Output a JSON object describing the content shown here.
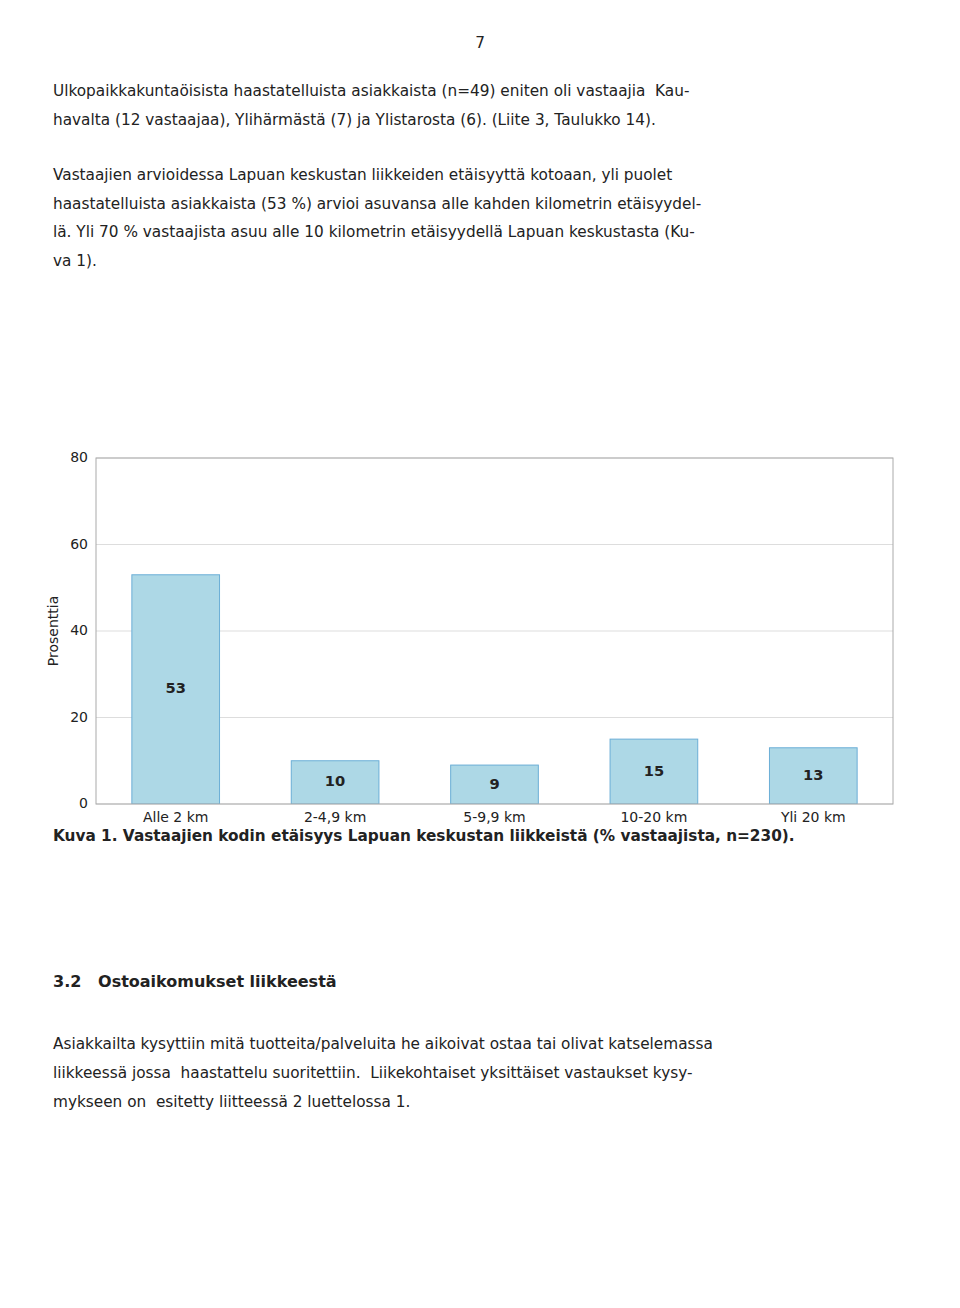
{
  "page_number": "7",
  "p1_lines": [
    "Ulkopaikkakuntaöisista haastatelluista asiakkaista (n=49) eniten oli vastaajia  Kau-",
    "havalta (12 vastaajaa), Ylihärmästä (7) ja Ylistarosta (6). (Liite 3, Taulukko 14)."
  ],
  "p2_lines": [
    "Vastaajien arvioidessa Lapuan keskustan liikkeiden etäisyyttä kotoaan, yli puolet",
    "haastatelluista asiakkaista (53 %) arvioi asuvansa alle kahden kilometrin etäisyydel-",
    "lä. Yli 70 % vastaajista asuu alle 10 kilometrin etäisyydellä Lapuan keskustasta (Ku-",
    "va 1)."
  ],
  "chart_data": {
    "type": "bar",
    "categories": [
      "Alle 2 km",
      "2-4,9 km",
      "5-9,9 km",
      "10-20 km",
      "Yli 20 km"
    ],
    "values": [
      53,
      10,
      9,
      15,
      13
    ],
    "color": "#add8e6",
    "y_label": "Prosenttia",
    "ylim": [
      0,
      80
    ],
    "yticks": [
      0,
      20,
      40,
      60,
      80
    ],
    "grid": true,
    "data_labels": true,
    "caption": "Kuva 1. Vastaajien kodin etäisyys Lapuan keskustan liikkeistä (% vastaajista, n=230)."
  },
  "section_heading": "3.2   Ostoaikomukset liikkeestä",
  "p3_lines": [
    "Asiakkailta kysyttiin mitä tuotteita/palveluita he aikoivat ostaa tai olivat katselemassa",
    "liikkeessä jossa  haastattelu suoritettiin.  Liikekohtaiset yksittäiset vastaukset kysy-",
    "mykseen on  esitetty liitteessä 2 luettelossa 1."
  ]
}
